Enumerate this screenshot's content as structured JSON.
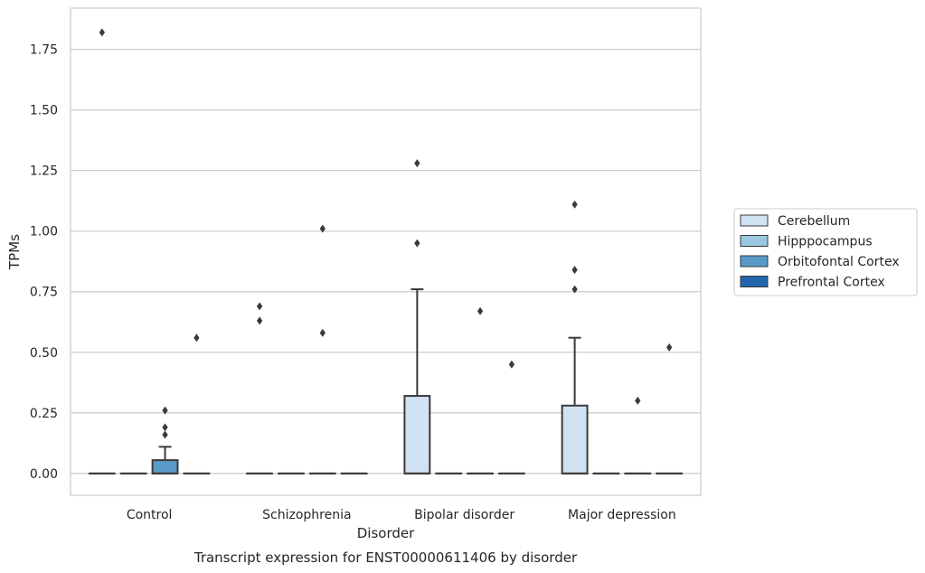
{
  "chart_data": {
    "type": "box",
    "title": "",
    "caption": "Transcript expression for ENST00000611406 by disorder",
    "xlabel": "Disorder",
    "ylabel": "TPMs",
    "ylim": [
      -0.09,
      1.92
    ],
    "yticks": [
      0.0,
      0.25,
      0.5,
      0.75,
      1.0,
      1.25,
      1.5,
      1.75
    ],
    "ytick_labels": [
      "0.00",
      "0.25",
      "0.50",
      "0.75",
      "1.00",
      "1.25",
      "1.50",
      "1.75"
    ],
    "grid": "horizontal",
    "legend_position": "right",
    "categories": [
      "Control",
      "Schizophrenia",
      "Bipolar disorder",
      "Major depression"
    ],
    "series": [
      {
        "name": "Cerebellum",
        "color": "#d1e2f2",
        "boxes": [
          {
            "q1": 0,
            "median": 0,
            "q3": 0,
            "whisker_low": 0,
            "whisker_high": 0,
            "outliers": [
              1.82
            ]
          },
          {
            "q1": 0,
            "median": 0,
            "q3": 0,
            "whisker_low": 0,
            "whisker_high": 0,
            "outliers": [
              0.69,
              0.63
            ]
          },
          {
            "q1": 0,
            "median": 0,
            "q3": 0.32,
            "whisker_low": 0,
            "whisker_high": 0.76,
            "outliers": [
              1.28,
              0.95
            ]
          },
          {
            "q1": 0,
            "median": 0,
            "q3": 0.28,
            "whisker_low": 0,
            "whisker_high": 0.56,
            "outliers": [
              1.11,
              0.84,
              0.76
            ]
          }
        ]
      },
      {
        "name": "Hipppocampus",
        "color": "#9ac8e0",
        "boxes": [
          {
            "q1": 0,
            "median": 0,
            "q3": 0,
            "whisker_low": 0,
            "whisker_high": 0,
            "outliers": []
          },
          {
            "q1": 0,
            "median": 0,
            "q3": 0,
            "whisker_low": 0,
            "whisker_high": 0,
            "outliers": []
          },
          {
            "q1": 0,
            "median": 0,
            "q3": 0,
            "whisker_low": 0,
            "whisker_high": 0,
            "outliers": []
          },
          {
            "q1": 0,
            "median": 0,
            "q3": 0,
            "whisker_low": 0,
            "whisker_high": 0,
            "outliers": []
          }
        ]
      },
      {
        "name": "Orbitofontal Cortex",
        "color": "#5a9ac8",
        "boxes": [
          {
            "q1": 0,
            "median": 0,
            "q3": 0.055,
            "whisker_low": 0,
            "whisker_high": 0.11,
            "outliers": [
              0.26,
              0.19,
              0.16
            ]
          },
          {
            "q1": 0,
            "median": 0,
            "q3": 0,
            "whisker_low": 0,
            "whisker_high": 0,
            "outliers": [
              1.01,
              0.58
            ]
          },
          {
            "q1": 0,
            "median": 0,
            "q3": 0,
            "whisker_low": 0,
            "whisker_high": 0,
            "outliers": [
              0.67
            ]
          },
          {
            "q1": 0,
            "median": 0,
            "q3": 0,
            "whisker_low": 0,
            "whisker_high": 0,
            "outliers": [
              0.3
            ]
          }
        ]
      },
      {
        "name": "Prefrontal Cortex",
        "color": "#2166ac",
        "boxes": [
          {
            "q1": 0,
            "median": 0,
            "q3": 0,
            "whisker_low": 0,
            "whisker_high": 0,
            "outliers": [
              0.56
            ]
          },
          {
            "q1": 0,
            "median": 0,
            "q3": 0,
            "whisker_low": 0,
            "whisker_high": 0,
            "outliers": []
          },
          {
            "q1": 0,
            "median": 0,
            "q3": 0,
            "whisker_low": 0,
            "whisker_high": 0,
            "outliers": [
              0.45
            ]
          },
          {
            "q1": 0,
            "median": 0,
            "q3": 0,
            "whisker_low": 0,
            "whisker_high": 0,
            "outliers": [
              0.52
            ]
          }
        ]
      }
    ]
  }
}
